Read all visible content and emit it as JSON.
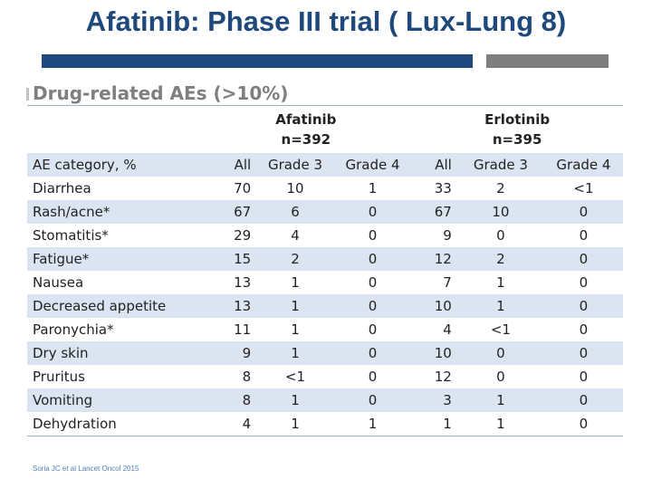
{
  "header": {
    "title": "Afatinib: Phase III trial ( Lux-Lung 8)",
    "subtitle": "Drug-related AEs (>10%)"
  },
  "colors": {
    "title": "#1f497d",
    "accent_bar": "#1f497d",
    "secondary_bar": "#7f7f7f",
    "row_stripe": "#dbe5f1"
  },
  "table": {
    "groups": [
      {
        "name": "Afatinib",
        "n": "n=392"
      },
      {
        "name": "Erlotinib",
        "n": "n=395"
      }
    ],
    "columns": [
      "AE category, %",
      "All",
      "Grade 3",
      "Grade 4",
      "All",
      "Grade 3",
      "Grade 4"
    ],
    "rows": [
      [
        "Diarrhea",
        "70",
        "10",
        "1",
        "33",
        "2",
        "<1"
      ],
      [
        "Rash/acne*",
        "67",
        "6",
        "0",
        "67",
        "10",
        "0"
      ],
      [
        "Stomatitis*",
        "29",
        "4",
        "0",
        "9",
        "0",
        "0"
      ],
      [
        "Fatigue*",
        "15",
        "2",
        "0",
        "12",
        "2",
        "0"
      ],
      [
        "Nausea",
        "13",
        "1",
        "0",
        "7",
        "1",
        "0"
      ],
      [
        "Decreased appetite",
        "13",
        "1",
        "0",
        "10",
        "1",
        "0"
      ],
      [
        "Paronychia*",
        "11",
        "1",
        "0",
        "4",
        "<1",
        "0"
      ],
      [
        "Dry skin",
        "9",
        "1",
        "0",
        "10",
        "0",
        "0"
      ],
      [
        "Pruritus",
        "8",
        "<1",
        "0",
        "12",
        "0",
        "0"
      ],
      [
        "Vomiting",
        "8",
        "1",
        "0",
        "3",
        "1",
        "0"
      ],
      [
        "Dehydration",
        "4",
        "1",
        "1",
        "1",
        "1",
        "0"
      ]
    ]
  },
  "footnote": "Soria JC et al Lancet Oncol 2015"
}
